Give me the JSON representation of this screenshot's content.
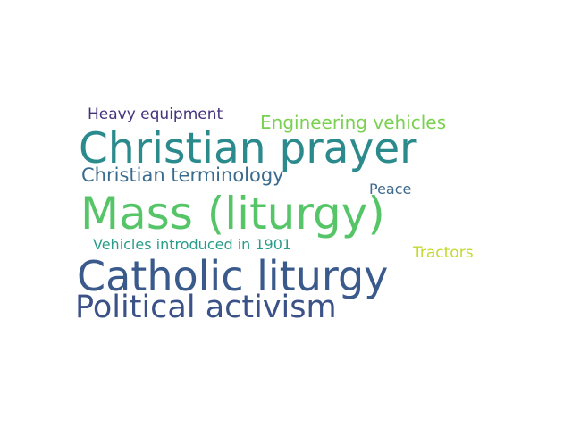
{
  "words": [
    {
      "text": "Christian prayer",
      "color": "#2a8a8c"
    },
    {
      "text": "Mass (liturgy)",
      "color": "#55c568"
    },
    {
      "text": "Catholic liturgy",
      "color": "#3a5a8c"
    },
    {
      "text": "Political activism",
      "color": "#3b5288"
    },
    {
      "text": "Christian terminology",
      "color": "#3b6b8e"
    },
    {
      "text": "Heavy equipment",
      "color": "#46337e"
    },
    {
      "text": "Engineering vehicles",
      "color": "#7ad151"
    },
    {
      "text": "Vehicles introduced in 1901",
      "color": "#2a9d8a"
    },
    {
      "text": "Peace",
      "color": "#3e6a8e"
    },
    {
      "text": "Tractors",
      "color": "#c5d92e"
    }
  ]
}
